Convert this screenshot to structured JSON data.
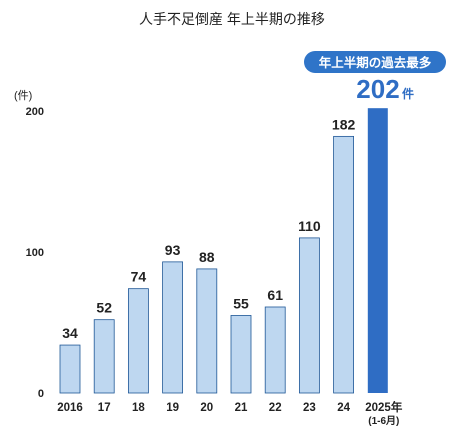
{
  "chart_data": {
    "type": "bar",
    "title": "人手不足倒産 年上半期の推移",
    "unit_label": "(件)",
    "y_ticks": [
      0,
      100,
      200
    ],
    "ylim": [
      0,
      200
    ],
    "categories": [
      "2016",
      "17",
      "18",
      "19",
      "20",
      "21",
      "22",
      "23",
      "24",
      "2025年"
    ],
    "category_sublabels": [
      "",
      "",
      "",
      "",
      "",
      "",
      "",
      "",
      "",
      "(1-6月)"
    ],
    "values": [
      34,
      52,
      74,
      93,
      88,
      55,
      61,
      110,
      182,
      202
    ],
    "highlight_index": 9,
    "highlight_value_label": "202",
    "highlight_unit": "件",
    "callout": "年上半期の過去最多",
    "grid": false,
    "colors": {
      "bar": "#bed7f0",
      "bar_border": "#1f5796",
      "highlight": "#2f6dc4",
      "callout_bg": "#2f74c8",
      "callout_text": "#ffffff",
      "highlight_label": "#2f6dc4",
      "text": "#222222"
    }
  }
}
